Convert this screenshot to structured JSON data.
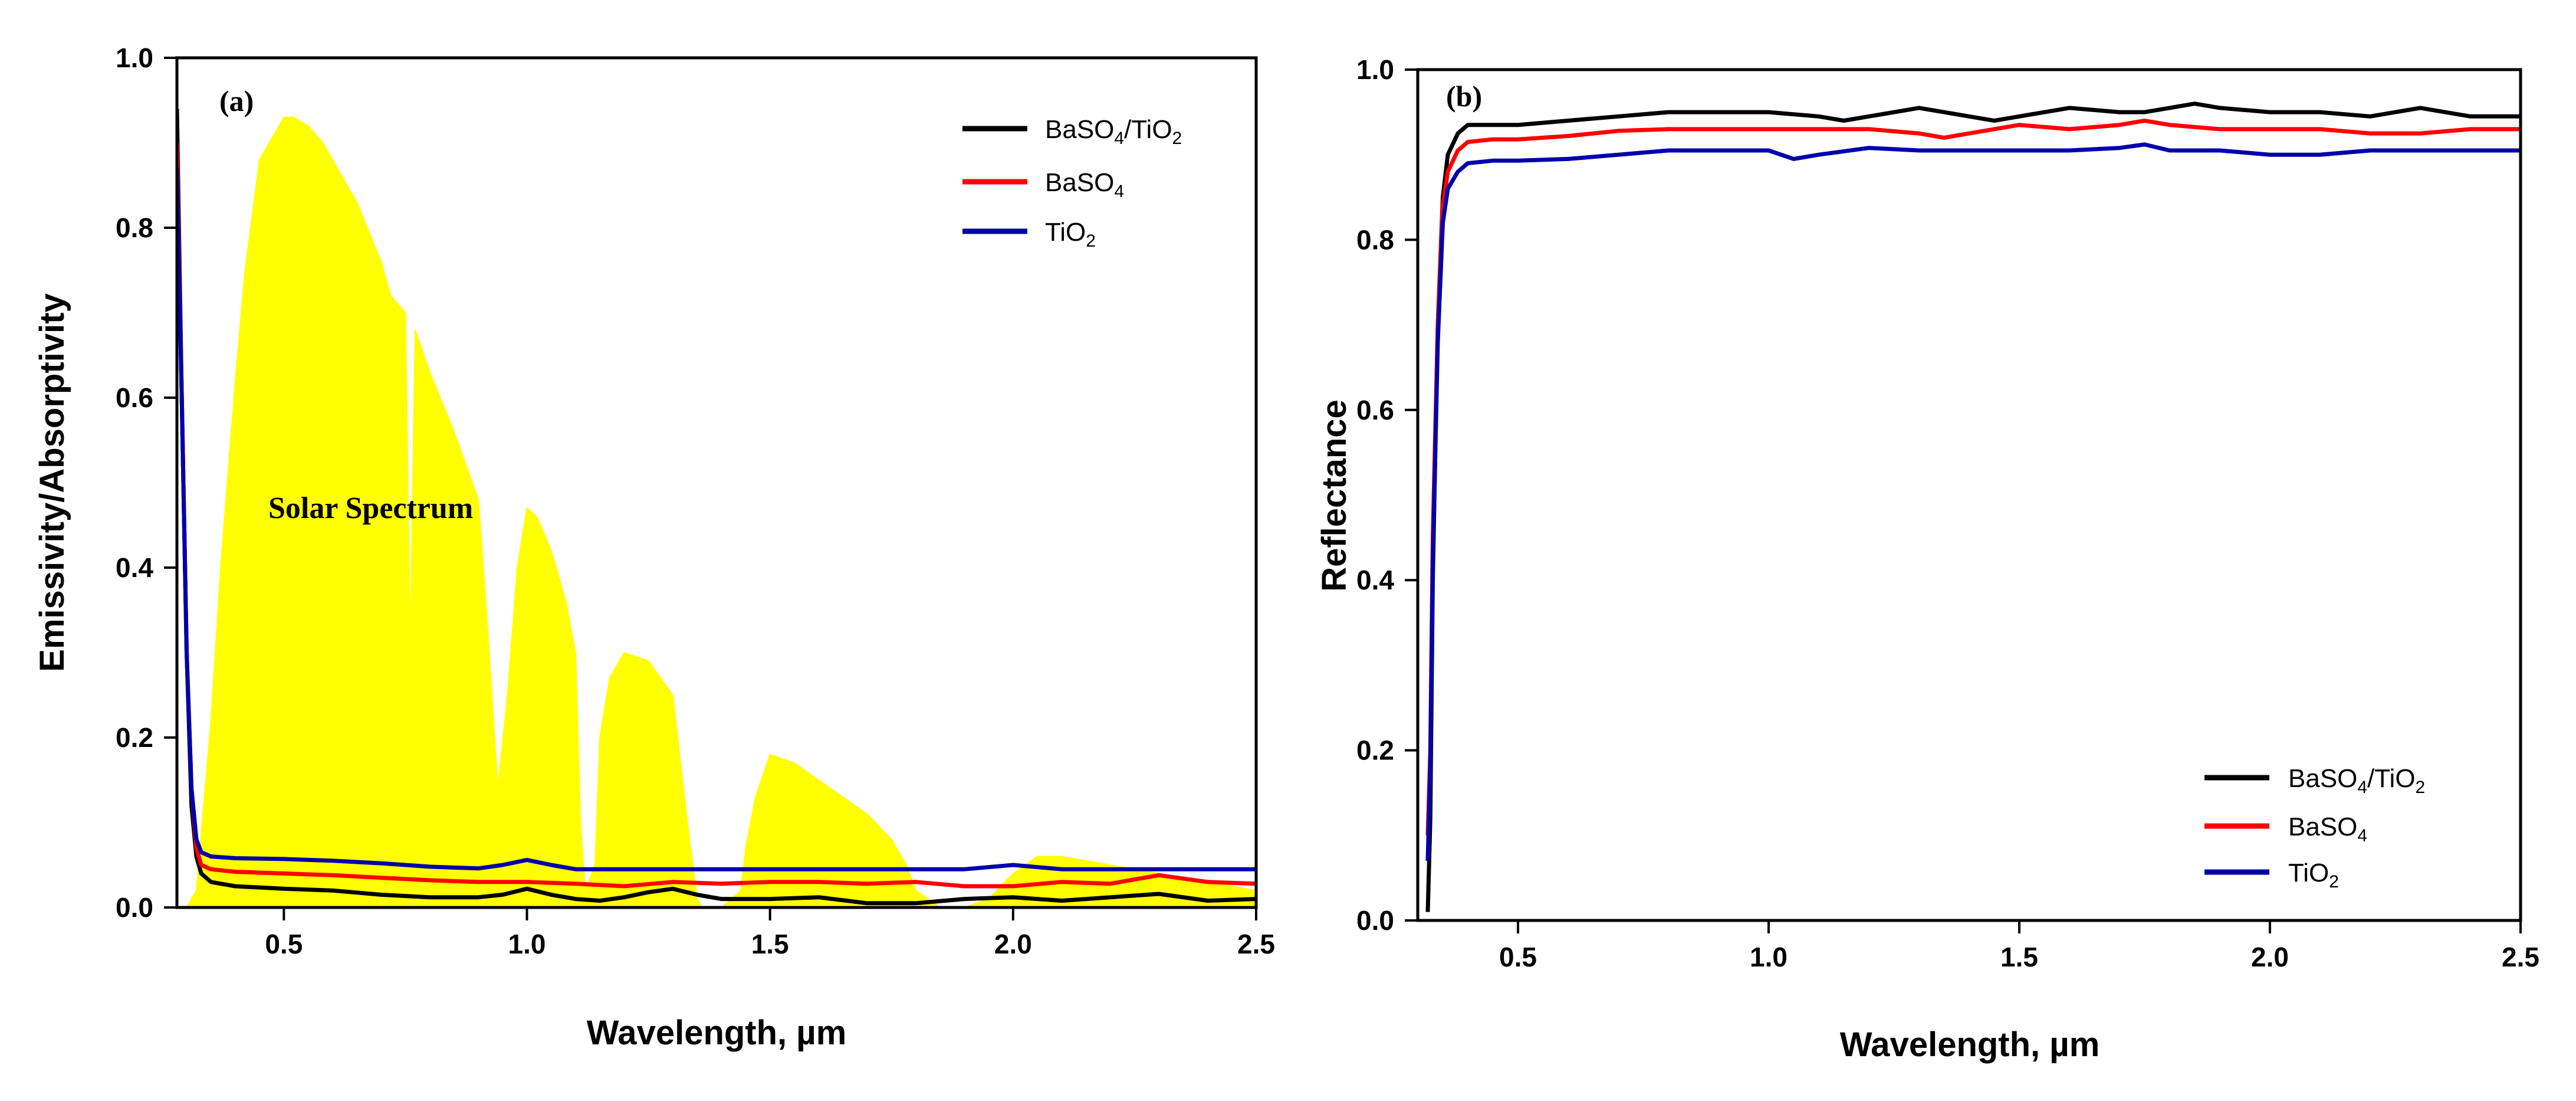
{
  "chart_data": [
    {
      "panel_label": "(a)",
      "type": "line",
      "title": "",
      "xlabel": "Wavelength, µm",
      "ylabel": "Emissivity/Absorptivity",
      "xlim": [
        0.28,
        2.5
      ],
      "ylim": [
        0.0,
        1.0
      ],
      "x_ticks": [
        0.5,
        1.0,
        1.5,
        2.0,
        2.5
      ],
      "x_tick_labels": [
        "0.5",
        "1.0",
        "1.5",
        "2.0",
        "2.5"
      ],
      "y_ticks": [
        0.0,
        0.2,
        0.4,
        0.6,
        0.8,
        1.0
      ],
      "y_tick_labels": [
        "0.0",
        "0.2",
        "0.4",
        "0.6",
        "0.8",
        "1.0"
      ],
      "grid": false,
      "legend_position": "top-right",
      "annotation": "Solar Spectrum",
      "series": [
        {
          "name": "BaSO4/TiO2",
          "legend_main": "BaSO",
          "legend_sub1": "4",
          "legend_mid": "/TiO",
          "legend_sub2": "2",
          "color": "#000000",
          "x": [
            0.28,
            0.29,
            0.3,
            0.31,
            0.32,
            0.33,
            0.35,
            0.4,
            0.5,
            0.6,
            0.7,
            0.8,
            0.9,
            0.95,
            1.0,
            1.05,
            1.1,
            1.15,
            1.2,
            1.25,
            1.3,
            1.35,
            1.4,
            1.5,
            1.6,
            1.7,
            1.8,
            1.9,
            2.0,
            2.1,
            2.2,
            2.3,
            2.4,
            2.5
          ],
          "y": [
            0.94,
            0.6,
            0.3,
            0.12,
            0.06,
            0.04,
            0.03,
            0.025,
            0.022,
            0.02,
            0.015,
            0.012,
            0.012,
            0.015,
            0.022,
            0.015,
            0.01,
            0.008,
            0.012,
            0.018,
            0.022,
            0.015,
            0.01,
            0.01,
            0.012,
            0.005,
            0.005,
            0.01,
            0.012,
            0.008,
            0.012,
            0.016,
            0.008,
            0.01
          ]
        },
        {
          "name": "BaSO4",
          "legend_main": "BaSO",
          "legend_sub1": "4",
          "legend_mid": "",
          "legend_sub2": "",
          "color": "#ff0000",
          "x": [
            0.28,
            0.29,
            0.3,
            0.31,
            0.32,
            0.33,
            0.35,
            0.4,
            0.5,
            0.6,
            0.7,
            0.8,
            0.9,
            1.0,
            1.1,
            1.2,
            1.3,
            1.4,
            1.5,
            1.6,
            1.7,
            1.8,
            1.9,
            2.0,
            2.1,
            2.2,
            2.3,
            2.4,
            2.5
          ],
          "y": [
            0.9,
            0.6,
            0.3,
            0.14,
            0.07,
            0.05,
            0.045,
            0.042,
            0.04,
            0.038,
            0.035,
            0.032,
            0.03,
            0.03,
            0.028,
            0.025,
            0.03,
            0.028,
            0.03,
            0.03,
            0.028,
            0.03,
            0.025,
            0.025,
            0.03,
            0.028,
            0.038,
            0.03,
            0.028
          ]
        },
        {
          "name": "TiO2",
          "legend_main": "TiO",
          "legend_sub1": "2",
          "legend_mid": "",
          "legend_sub2": "",
          "color": "#0000aa",
          "x": [
            0.28,
            0.29,
            0.3,
            0.31,
            0.32,
            0.33,
            0.35,
            0.4,
            0.5,
            0.6,
            0.7,
            0.8,
            0.9,
            0.95,
            1.0,
            1.05,
            1.1,
            1.2,
            1.3,
            1.4,
            1.5,
            1.6,
            1.7,
            1.8,
            1.9,
            2.0,
            2.1,
            2.2,
            2.3,
            2.4,
            2.5
          ],
          "y": [
            0.87,
            0.6,
            0.3,
            0.14,
            0.08,
            0.065,
            0.06,
            0.058,
            0.057,
            0.055,
            0.052,
            0.048,
            0.046,
            0.05,
            0.056,
            0.05,
            0.045,
            0.045,
            0.045,
            0.045,
            0.045,
            0.045,
            0.045,
            0.045,
            0.045,
            0.05,
            0.045,
            0.045,
            0.045,
            0.045,
            0.045
          ]
        }
      ],
      "solar_spectrum": {
        "name": "Solar Spectrum",
        "color": "#ffff00",
        "x": [
          0.3,
          0.32,
          0.35,
          0.37,
          0.4,
          0.42,
          0.45,
          0.48,
          0.5,
          0.52,
          0.55,
          0.58,
          0.6,
          0.65,
          0.7,
          0.72,
          0.75,
          0.76,
          0.77,
          0.8,
          0.85,
          0.9,
          0.92,
          0.94,
          0.96,
          0.98,
          1.0,
          1.02,
          1.05,
          1.08,
          1.1,
          1.11,
          1.12,
          1.14,
          1.15,
          1.17,
          1.2,
          1.25,
          1.3,
          1.33,
          1.35,
          1.36,
          1.4,
          1.44,
          1.45,
          1.47,
          1.5,
          1.55,
          1.6,
          1.65,
          1.7,
          1.75,
          1.78,
          1.8,
          1.85,
          1.9,
          1.95,
          2.0,
          2.05,
          2.1,
          2.2,
          2.3,
          2.4,
          2.5
        ],
        "y": [
          0.0,
          0.02,
          0.22,
          0.4,
          0.62,
          0.75,
          0.88,
          0.91,
          0.93,
          0.93,
          0.92,
          0.9,
          0.88,
          0.83,
          0.76,
          0.72,
          0.7,
          0.3,
          0.68,
          0.63,
          0.56,
          0.48,
          0.32,
          0.14,
          0.25,
          0.4,
          0.47,
          0.46,
          0.42,
          0.36,
          0.3,
          0.1,
          0.02,
          0.05,
          0.2,
          0.27,
          0.3,
          0.29,
          0.25,
          0.1,
          0.01,
          0.0,
          0.0,
          0.02,
          0.07,
          0.13,
          0.18,
          0.17,
          0.15,
          0.13,
          0.11,
          0.08,
          0.05,
          0.02,
          0.0,
          0.0,
          0.01,
          0.04,
          0.06,
          0.06,
          0.05,
          0.04,
          0.03,
          0.02
        ]
      }
    },
    {
      "panel_label": "(b)",
      "type": "line",
      "title": "",
      "xlabel": "Wavelength, µm",
      "ylabel": "Reflectance",
      "xlim": [
        0.3,
        2.5
      ],
      "ylim": [
        0.0,
        1.0
      ],
      "x_ticks": [
        0.5,
        1.0,
        1.5,
        2.0,
        2.5
      ],
      "x_tick_labels": [
        "0.5",
        "1.0",
        "1.5",
        "2.0",
        "2.5"
      ],
      "y_ticks": [
        0.0,
        0.2,
        0.4,
        0.6,
        0.8,
        1.0
      ],
      "y_tick_labels": [
        "0.0",
        "0.2",
        "0.4",
        "0.6",
        "0.8",
        "1.0"
      ],
      "grid": false,
      "legend_position": "bottom-right",
      "series": [
        {
          "name": "BaSO4/TiO2",
          "legend_main": "BaSO",
          "legend_sub1": "4",
          "legend_mid": "/TiO",
          "legend_sub2": "2",
          "color": "#000000",
          "x": [
            0.32,
            0.325,
            0.33,
            0.34,
            0.35,
            0.36,
            0.38,
            0.4,
            0.45,
            0.5,
            0.6,
            0.7,
            0.8,
            0.9,
            1.0,
            1.1,
            1.15,
            1.2,
            1.3,
            1.4,
            1.45,
            1.5,
            1.6,
            1.7,
            1.75,
            1.8,
            1.85,
            1.9,
            2.0,
            2.1,
            2.2,
            2.3,
            2.4,
            2.5
          ],
          "y": [
            0.01,
            0.12,
            0.4,
            0.7,
            0.85,
            0.9,
            0.925,
            0.935,
            0.935,
            0.935,
            0.94,
            0.945,
            0.95,
            0.95,
            0.95,
            0.945,
            0.94,
            0.945,
            0.955,
            0.945,
            0.94,
            0.945,
            0.955,
            0.95,
            0.95,
            0.955,
            0.96,
            0.955,
            0.95,
            0.95,
            0.945,
            0.955,
            0.945,
            0.945
          ]
        },
        {
          "name": "BaSO4",
          "legend_main": "BaSO",
          "legend_sub1": "4",
          "legend_mid": "",
          "legend_sub2": "",
          "color": "#ff0000",
          "x": [
            0.32,
            0.325,
            0.33,
            0.34,
            0.35,
            0.36,
            0.38,
            0.4,
            0.45,
            0.5,
            0.6,
            0.7,
            0.8,
            0.9,
            1.0,
            1.1,
            1.2,
            1.3,
            1.35,
            1.4,
            1.5,
            1.6,
            1.7,
            1.75,
            1.8,
            1.9,
            2.0,
            2.1,
            2.2,
            2.3,
            2.4,
            2.5
          ],
          "y": [
            0.1,
            0.2,
            0.45,
            0.7,
            0.84,
            0.88,
            0.905,
            0.915,
            0.918,
            0.918,
            0.922,
            0.928,
            0.93,
            0.93,
            0.93,
            0.93,
            0.93,
            0.925,
            0.92,
            0.925,
            0.935,
            0.93,
            0.935,
            0.94,
            0.935,
            0.93,
            0.93,
            0.93,
            0.925,
            0.925,
            0.93,
            0.93
          ]
        },
        {
          "name": "TiO2",
          "legend_main": "TiO",
          "legend_sub1": "2",
          "legend_mid": "",
          "legend_sub2": "",
          "color": "#0000aa",
          "x": [
            0.32,
            0.325,
            0.33,
            0.34,
            0.35,
            0.36,
            0.38,
            0.4,
            0.45,
            0.5,
            0.6,
            0.7,
            0.8,
            0.9,
            1.0,
            1.05,
            1.1,
            1.2,
            1.3,
            1.4,
            1.5,
            1.6,
            1.7,
            1.75,
            1.8,
            1.9,
            2.0,
            2.05,
            2.1,
            2.2,
            2.3,
            2.4,
            2.5
          ],
          "y": [
            0.07,
            0.18,
            0.42,
            0.68,
            0.82,
            0.86,
            0.88,
            0.89,
            0.893,
            0.893,
            0.895,
            0.9,
            0.905,
            0.905,
            0.905,
            0.895,
            0.9,
            0.908,
            0.905,
            0.905,
            0.905,
            0.905,
            0.908,
            0.912,
            0.905,
            0.905,
            0.9,
            0.9,
            0.9,
            0.905,
            0.905,
            0.905,
            0.905
          ]
        }
      ]
    }
  ]
}
